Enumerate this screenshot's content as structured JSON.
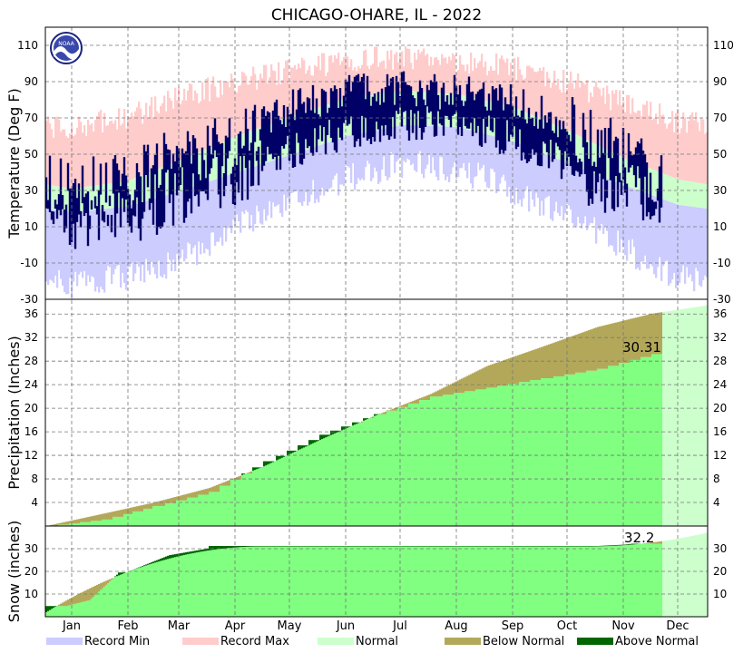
{
  "title": "CHICAGO-OHARE, IL - 2022",
  "logo_text": "NOAA",
  "colors": {
    "record_min": "#ccccff",
    "record_max": "#ffcccc",
    "normal": "#ccffcc",
    "normal_precip": "#80ff80",
    "below_normal": "#b3a85a",
    "above_normal": "#006600",
    "observed_temp": "#000066"
  },
  "legend": [
    {
      "label": "Record Min",
      "color": "#ccccff"
    },
    {
      "label": "Record Max",
      "color": "#ffcccc"
    },
    {
      "label": "Normal",
      "color": "#ccffcc"
    },
    {
      "label": "Below Normal",
      "color": "#b3a85a"
    },
    {
      "label": "Above Normal",
      "color": "#006600"
    }
  ],
  "months": [
    "Jan",
    "Feb",
    "Mar",
    "Apr",
    "May",
    "Jun",
    "Jul",
    "Aug",
    "Sep",
    "Oct",
    "Nov",
    "Dec"
  ],
  "chart_data": [
    {
      "type": "area",
      "panel": "temperature",
      "ylabel": "Temperature (Deg F)",
      "ylim": [
        -30,
        120
      ],
      "yticks": [
        110,
        90,
        70,
        50,
        30,
        10,
        -10,
        -30
      ],
      "grid": true,
      "x_unit": "day of year",
      "normal_high_monthly": [
        31,
        35,
        47,
        60,
        71,
        81,
        85,
        83,
        76,
        63,
        48,
        36
      ],
      "normal_low_monthly": [
        18,
        21,
        30,
        40,
        50,
        60,
        66,
        65,
        57,
        45,
        33,
        22
      ],
      "record_high_monthly": [
        65,
        70,
        82,
        90,
        96,
        102,
        103,
        101,
        98,
        90,
        78,
        68
      ],
      "record_low_monthly": [
        -22,
        -18,
        -8,
        10,
        25,
        37,
        45,
        42,
        30,
        16,
        -2,
        -18
      ],
      "observed_through_day": 340,
      "observed_high_monthly": [
        30,
        34,
        50,
        58,
        76,
        84,
        86,
        84,
        79,
        66,
        48,
        36
      ],
      "observed_low_monthly": [
        14,
        17,
        29,
        38,
        52,
        63,
        67,
        66,
        58,
        44,
        31,
        24
      ]
    },
    {
      "type": "area",
      "panel": "precipitation",
      "ylabel": "Precipitation (Inches)",
      "ylim": [
        0,
        38.5
      ],
      "yticks": [
        36,
        32,
        28,
        24,
        20,
        16,
        12,
        8,
        4
      ],
      "grid": true,
      "annotation": "30.31",
      "month_start_normal": [
        0,
        2.06,
        3.96,
        6.46,
        10.14,
        14.63,
        18.71,
        22.42,
        27.17,
        30.39,
        33.8,
        36.07
      ],
      "month_start_observed": [
        0,
        1.1,
        3.4,
        5.8,
        11.0,
        15.5,
        19.0,
        22.0,
        23.5,
        25.1,
        26.7,
        29.2
      ],
      "normal_year_end": 37.5,
      "observed_ytd": 30.31
    },
    {
      "type": "area",
      "panel": "snow",
      "ylabel": "Snow (inches)",
      "ylim": [
        0,
        40
      ],
      "yticks": [
        30,
        20,
        10
      ],
      "grid": true,
      "annotation": "32.2",
      "season_normal_start": 1.5,
      "season_normal_total": 37,
      "observed_season": 32.2
    }
  ]
}
